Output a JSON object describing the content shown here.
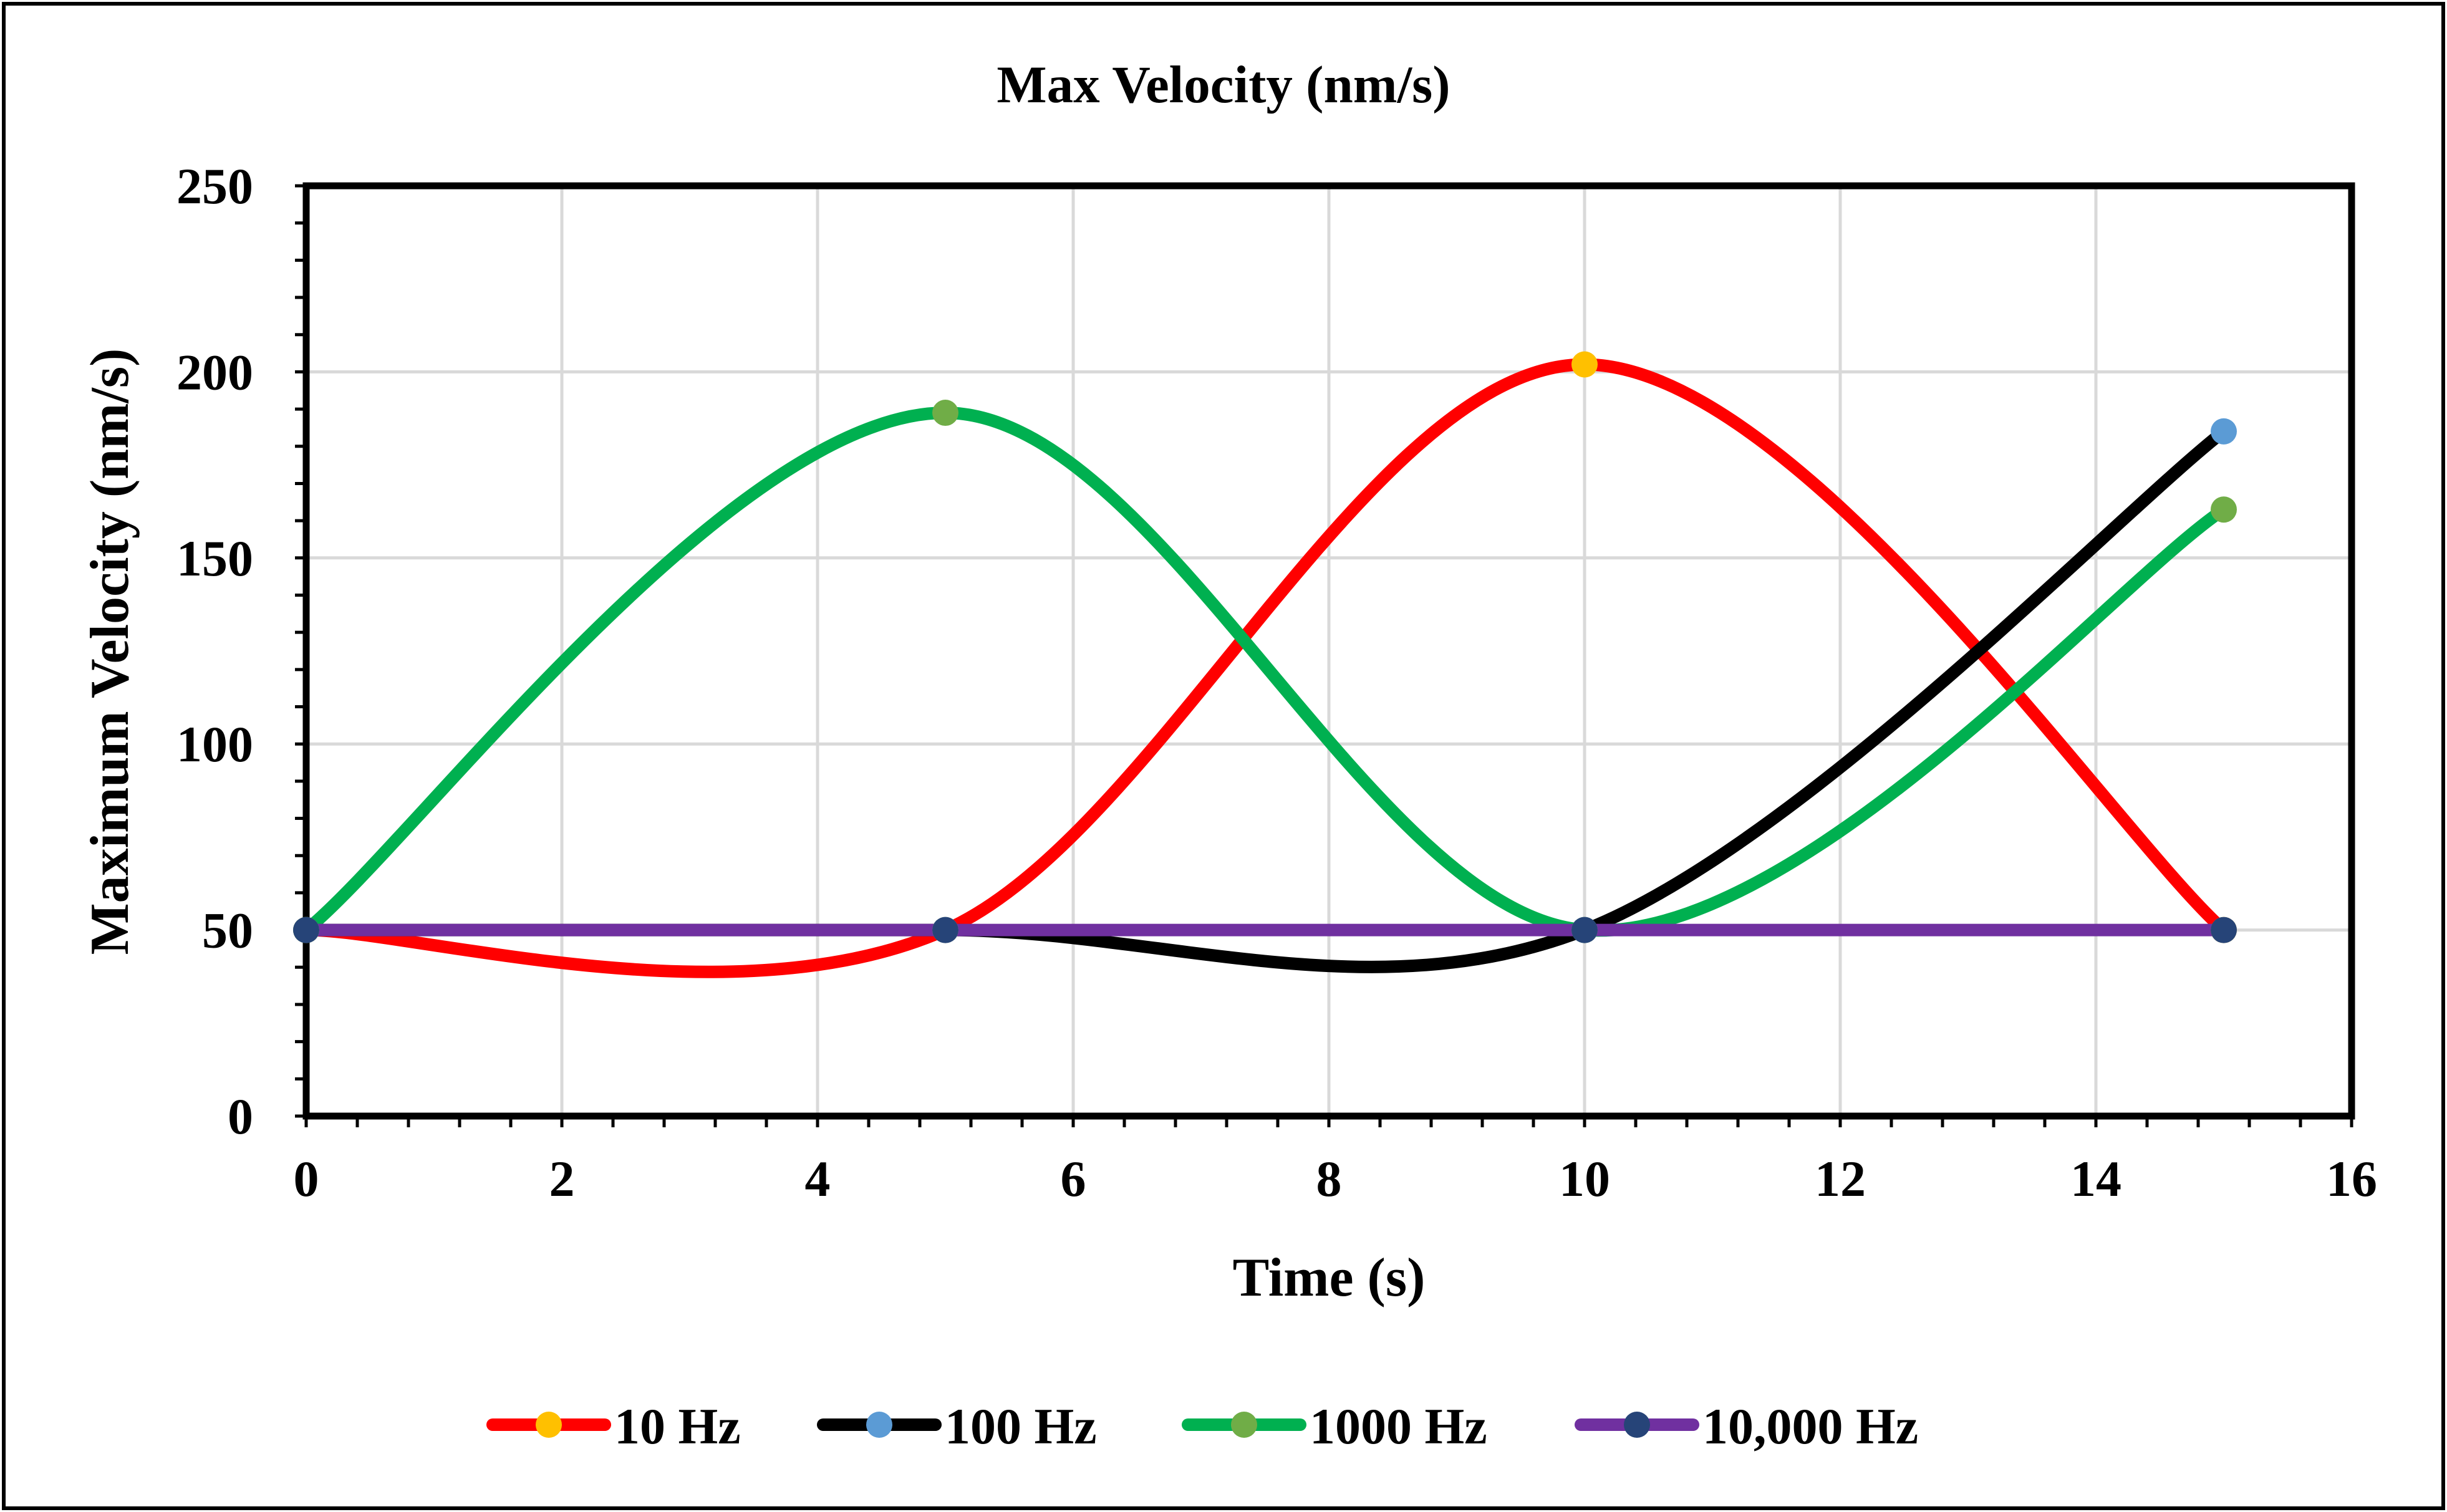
{
  "chart_data": {
    "type": "line",
    "smooth": true,
    "title": "Max  Velocity (nm/s)",
    "xlabel": "Time (s)",
    "ylabel": "Maximum Velocity (nm/s)",
    "xlim": [
      0,
      16
    ],
    "ylim": [
      0,
      250
    ],
    "x_ticks": [
      0,
      2,
      4,
      6,
      8,
      10,
      12,
      14,
      16
    ],
    "y_ticks": [
      0,
      50,
      100,
      150,
      200,
      250
    ],
    "grid": true,
    "legend_position": "bottom",
    "x": [
      0,
      5,
      10,
      15
    ],
    "series": [
      {
        "name": "10 Hz",
        "values": [
          50,
          50,
          202,
          50
        ],
        "line_color": "#ff0000",
        "marker_color": "#ffc000"
      },
      {
        "name": "100 Hz",
        "values": [
          50,
          50,
          50,
          184
        ],
        "line_color": "#000000",
        "marker_color": "#5b9bd5"
      },
      {
        "name": "1000 Hz",
        "values": [
          50,
          189,
          50,
          163
        ],
        "line_color": "#00b050",
        "marker_color": "#70ad47"
      },
      {
        "name": "10,000 Hz",
        "values": [
          50,
          50,
          50,
          50
        ],
        "line_color": "#7030a0",
        "marker_color": "#264478"
      }
    ]
  }
}
